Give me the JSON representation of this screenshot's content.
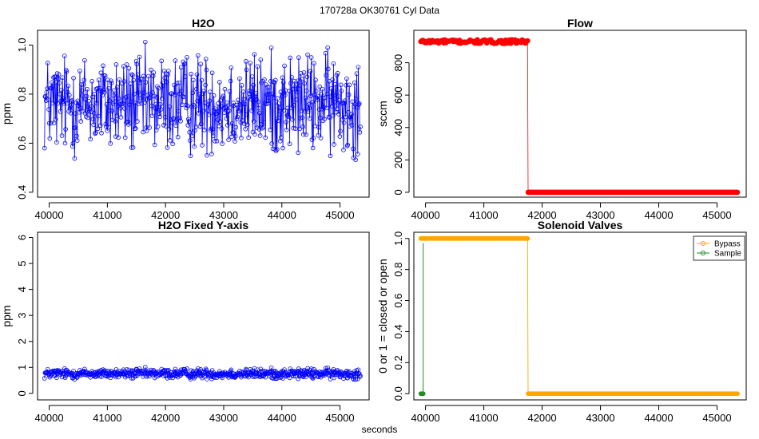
{
  "page_title": "170728a    OK30761    Cyl Data",
  "x_axis_label": "seconds",
  "chart_data": [
    {
      "id": "h2o",
      "type": "line",
      "title": "H2O",
      "ylabel": "ppm",
      "xlim": [
        39800,
        45500
      ],
      "ylim": [
        0.38,
        1.06
      ],
      "xticks": [
        40000,
        41000,
        42000,
        43000,
        44000,
        45000
      ],
      "xtick_labels": [
        "40000",
        "41000",
        "42000",
        "43000",
        "44000",
        "45000"
      ],
      "yticks": [
        0.4,
        0.6,
        0.8,
        1.0
      ],
      "ytick_labels": [
        "0.4",
        "0.6",
        "0.8",
        "1.0"
      ],
      "color": "#0000ff",
      "series_generator": {
        "x_start": 39920,
        "x_end": 45350,
        "n": 600,
        "mean": 0.76,
        "spread": 0.14,
        "min": 0.4,
        "max": 1.05
      }
    },
    {
      "id": "flow",
      "type": "line",
      "title": "Flow",
      "ylabel": "sccm",
      "xlim": [
        39800,
        45500
      ],
      "ylim": [
        -30,
        1000
      ],
      "xticks": [
        40000,
        41000,
        42000,
        43000,
        44000,
        45000
      ],
      "xtick_labels": [
        "40000",
        "41000",
        "42000",
        "43000",
        "44000",
        "45000"
      ],
      "yticks": [
        0,
        200,
        400,
        600,
        800
      ],
      "ytick_labels": [
        "0",
        "200",
        "400",
        "600",
        "800"
      ],
      "color": "#ff0000",
      "segments": [
        {
          "x_start": 39920,
          "x_end": 41750,
          "y": 930,
          "jitter": 12
        },
        {
          "x_start": 41760,
          "x_end": 45350,
          "y": 0,
          "jitter": 0
        }
      ]
    },
    {
      "id": "h2o_fixed",
      "type": "line",
      "title": "H2O Fixed Y-axis",
      "ylabel": "ppm",
      "xlim": [
        39800,
        45500
      ],
      "ylim": [
        -0.25,
        6.2
      ],
      "xticks": [
        40000,
        41000,
        42000,
        43000,
        44000,
        45000
      ],
      "xtick_labels": [
        "40000",
        "41000",
        "42000",
        "43000",
        "44000",
        "45000"
      ],
      "yticks": [
        0,
        1,
        2,
        3,
        4,
        5,
        6
      ],
      "ytick_labels": [
        "0",
        "1",
        "2",
        "3",
        "4",
        "5",
        "6"
      ],
      "color": "#0000ff",
      "series_generator": {
        "x_start": 39920,
        "x_end": 45350,
        "n": 600,
        "mean": 0.76,
        "spread": 0.14,
        "min": 0.4,
        "max": 1.05
      }
    },
    {
      "id": "valves",
      "type": "line",
      "title": "Solenoid Valves",
      "ylabel": "0 or 1 = closed or open",
      "xlim": [
        39800,
        45500
      ],
      "ylim": [
        -0.04,
        1.04
      ],
      "xticks": [
        40000,
        41000,
        42000,
        43000,
        44000,
        45000
      ],
      "xtick_labels": [
        "40000",
        "41000",
        "42000",
        "43000",
        "44000",
        "45000"
      ],
      "yticks": [
        0,
        0.2,
        0.4,
        0.6,
        0.8,
        1.0
      ],
      "ytick_labels": [
        "0.0",
        "0.2",
        "0.4",
        "0.6",
        "0.8",
        "1.0"
      ],
      "legend": {
        "position": "top-right",
        "entries": [
          "Bypass",
          "Sample"
        ]
      },
      "series": [
        {
          "name": "Bypass",
          "color": "#ffa500",
          "segments": [
            {
              "x_start": 39920,
              "x_end": 41750,
              "y": 1
            },
            {
              "x_start": 41760,
              "x_end": 45350,
              "y": 0
            }
          ]
        },
        {
          "name": "Sample",
          "color": "#228b22",
          "segments": [
            {
              "x_start": 39920,
              "x_end": 39960,
              "y": 0
            }
          ]
        }
      ]
    }
  ]
}
